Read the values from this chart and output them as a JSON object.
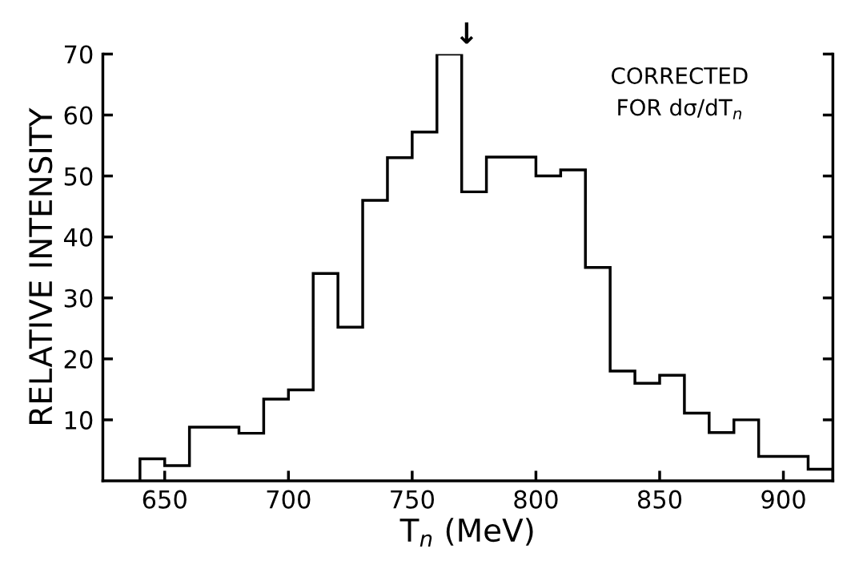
{
  "chart_data": {
    "type": "histogram",
    "xlabel": "T$_{n}$ (MeV)",
    "ylabel": "RELATIVE INTENSITY",
    "bins": [
      640,
      650,
      660,
      670,
      680,
      690,
      700,
      710,
      720,
      730,
      740,
      750,
      760,
      770,
      780,
      790,
      800,
      810,
      820,
      830,
      840,
      850,
      860,
      870,
      880,
      890,
      900,
      910,
      920
    ],
    "values": [
      3.6,
      2.5,
      8.8,
      8.8,
      7.8,
      13.4,
      14.9,
      34.0,
      25.2,
      46.0,
      53.0,
      57.2,
      70.0,
      47.4,
      53.1,
      53.1,
      50.0,
      51.0,
      35.0,
      18.0,
      16.0,
      17.3,
      11.1,
      7.9,
      10.0,
      4.0,
      4.0,
      1.9
    ],
    "color": "#000000",
    "xlim": [
      625,
      920
    ],
    "xticks": [
      650,
      700,
      750,
      800,
      850,
      900
    ],
    "ylim": [
      0,
      70
    ],
    "yticks": [
      10,
      20,
      30,
      40,
      50,
      60,
      70
    ],
    "annotations": [
      {
        "text": "↓",
        "x": 772,
        "y": 70
      },
      "CORRECTED\nFOR dσ/dT$_{n}$"
    ],
    "grid": false,
    "legend": false
  }
}
